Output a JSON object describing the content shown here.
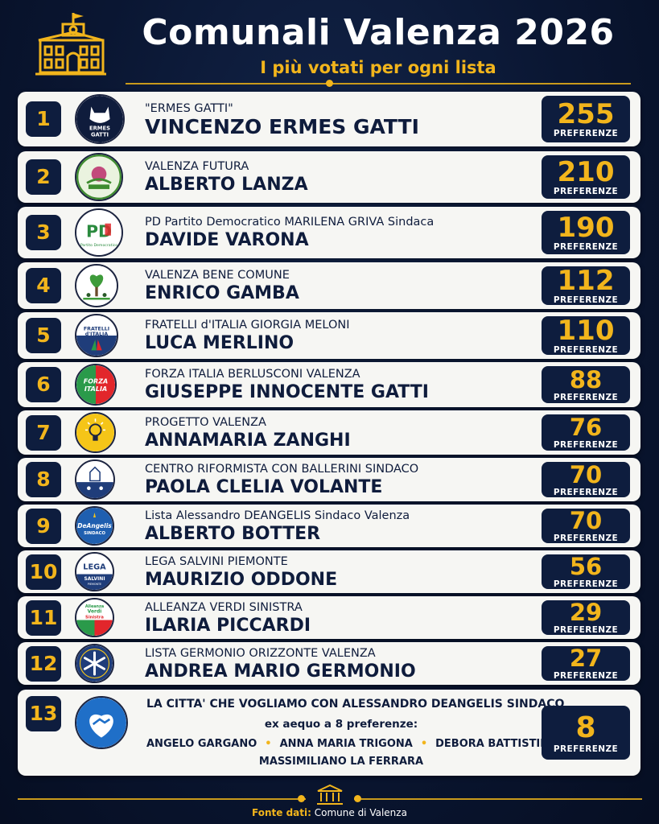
{
  "header": {
    "title": "Comunali Valenza 2026",
    "subtitle": "I più votati per ogni lista"
  },
  "colors": {
    "background": "#0a1632",
    "accent": "#f2b51c",
    "card": "#f6f6f3",
    "dark_box": "#0e1d3e",
    "text": "#0f1c3c"
  },
  "score_label": "PREFERENZE",
  "rows": [
    {
      "rank": "1",
      "list": "\"ERMES GATTI\"",
      "candidate": "VINCENZO ERMES GATTI",
      "votes": "255",
      "logo_icon": "cat-logo-icon",
      "logo_text": [
        "ERMES",
        "GATTI"
      ]
    },
    {
      "rank": "2",
      "list": "VALENZA FUTURA",
      "candidate": "ALBERTO LANZA",
      "votes": "210",
      "logo_icon": "valenza-futura-logo-icon",
      "logo_text": []
    },
    {
      "rank": "3",
      "list": "PD Partito Democratico MARILENA GRIVA Sindaca",
      "candidate": "DAVIDE VARONA",
      "votes": "190",
      "logo_icon": "pd-logo-icon",
      "logo_text": [
        "PD",
        "Partito Democratico"
      ]
    },
    {
      "rank": "4",
      "list": "VALENZA BENE COMUNE",
      "candidate": "ENRICO GAMBA",
      "votes": "112",
      "logo_icon": "tree-heart-logo-icon",
      "logo_text": []
    },
    {
      "rank": "5",
      "list": "FRATELLI d'ITALIA GIORGIA MELONI",
      "candidate": "LUCA MERLINO",
      "votes": "110",
      "logo_icon": "fdi-logo-icon",
      "logo_text": [
        "FRATELLI",
        "d'ITALIA"
      ]
    },
    {
      "rank": "6",
      "list": "FORZA ITALIA BERLUSCONI VALENZA",
      "candidate": "GIUSEPPE INNOCENTE GATTI",
      "votes": "88",
      "logo_icon": "forza-italia-logo-icon",
      "logo_text": [
        "FORZA",
        "ITALIA"
      ]
    },
    {
      "rank": "7",
      "list": "PROGETTO VALENZA",
      "candidate": "ANNAMARIA ZANGHI",
      "votes": "76",
      "logo_icon": "lightbulb-logo-icon",
      "logo_text": []
    },
    {
      "rank": "8",
      "list": "CENTRO RIFORMISTA CON BALLERINI SINDACO",
      "candidate": "PAOLA CLELIA VOLANTE",
      "votes": "70",
      "logo_icon": "church-logo-icon",
      "logo_text": []
    },
    {
      "rank": "9",
      "list": "Lista Alessandro DEANGELIS Sindaco Valenza",
      "candidate": "ALBERTO BOTTER",
      "votes": "70",
      "logo_icon": "deangelis-logo-icon",
      "logo_text": [
        "DeAngelis",
        "SINDACO"
      ]
    },
    {
      "rank": "10",
      "list": "LEGA SALVINI PIEMONTE",
      "candidate": "MAURIZIO ODDONE",
      "votes": "56",
      "logo_icon": "lega-logo-icon",
      "logo_text": [
        "LEGA",
        "SALVINI",
        "PIEMONTE"
      ]
    },
    {
      "rank": "11",
      "list": "ALLEANZA VERDI SINISTRA",
      "candidate": "ILARIA PICCARDI",
      "votes": "29",
      "logo_icon": "avs-logo-icon",
      "logo_text": [
        "Alleanza",
        "Verdi",
        "Sinistra"
      ]
    },
    {
      "rank": "12",
      "list": "LISTA GERMONIO ORIZZONTE VALENZA",
      "candidate": "ANDREA MARIO GERMONIO",
      "votes": "27",
      "logo_icon": "star-logo-icon",
      "logo_text": []
    }
  ],
  "row13": {
    "rank": "13",
    "list": "LA CITTA' CHE VOGLIAMO CON ALESSANDRO DEANGELIS SINDACO",
    "note": "ex aequo a 8 preferenze:",
    "candidates": [
      "ANGELO GARGANO",
      "ANNA MARIA TRIGONA",
      "DEBORA BATTISTINI",
      "MASSIMILIANO LA FERRARA"
    ],
    "votes": "8",
    "logo_icon": "handshake-heart-logo-icon"
  },
  "footer": {
    "source_label": "Fonte dati:",
    "source_value": "Comune di Valenza"
  }
}
